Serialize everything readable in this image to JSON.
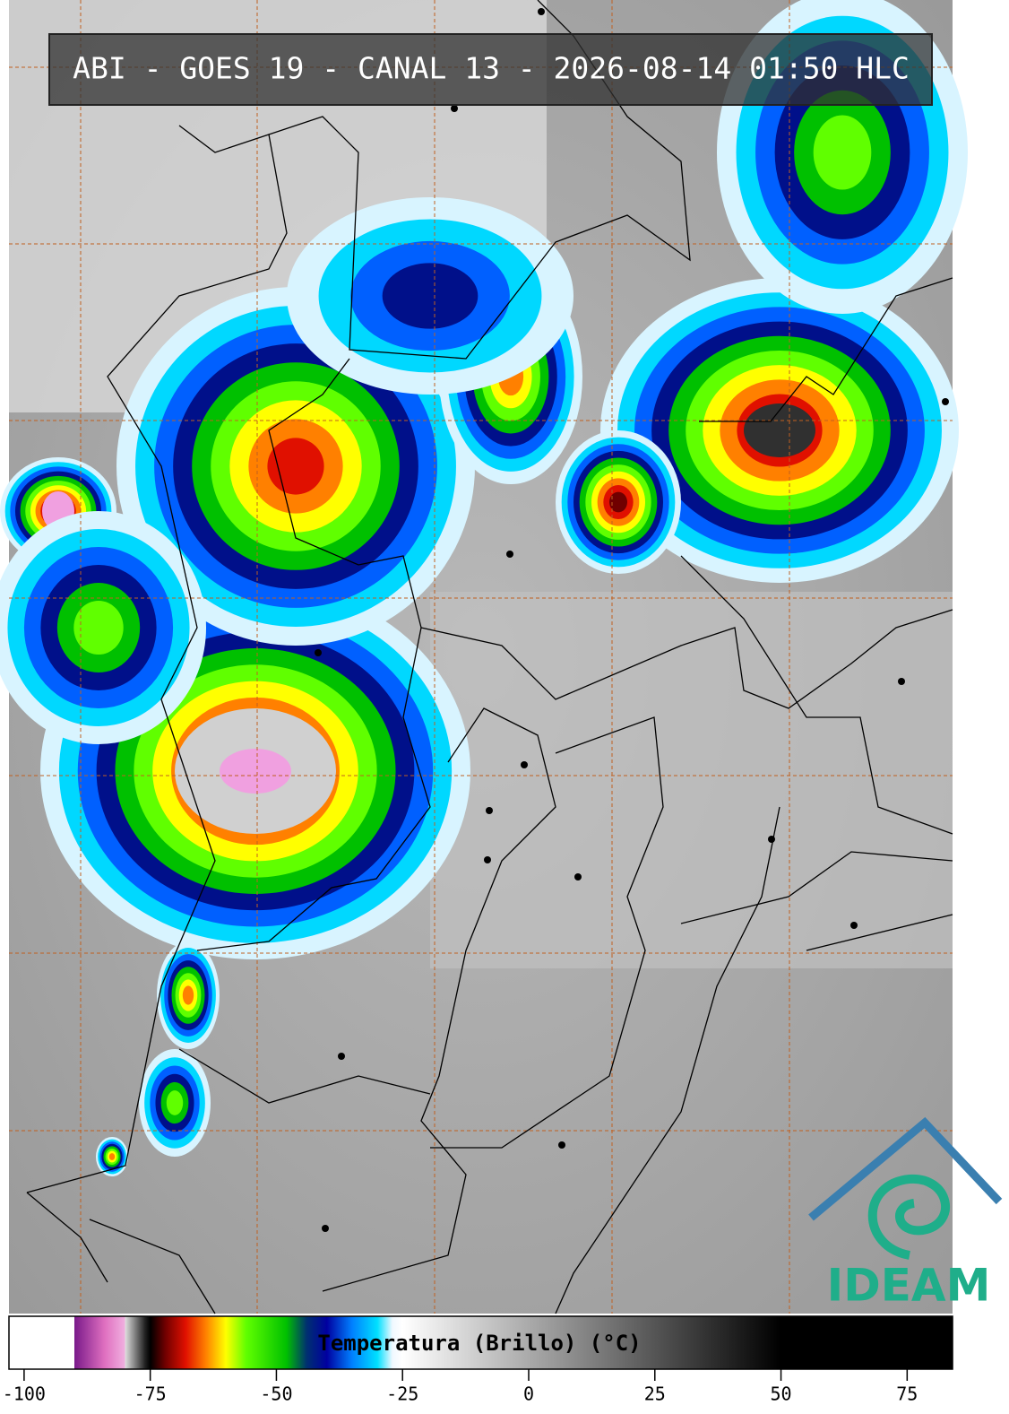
{
  "title": "ABI - GOES 19 - CANAL 13 - 2026-08-14 01:50 HLC",
  "logo": "IDEAM",
  "colorbar": {
    "label": "Temperatura (Brillo) (°C)",
    "xlim": [
      -103,
      84
    ],
    "xticks": [
      -100,
      -75,
      -50,
      -25,
      0,
      25,
      50,
      75
    ],
    "stops": [
      [
        -103,
        "#ffffff"
      ],
      [
        -90,
        "#ffffff"
      ],
      [
        -90,
        "#7a1a8a"
      ],
      [
        -84,
        "#e070c0"
      ],
      [
        -80,
        "#f0b0e0"
      ],
      [
        -80,
        "#e0e0e0"
      ],
      [
        -76,
        "#202020"
      ],
      [
        -75,
        "#000000"
      ],
      [
        -72,
        "#700000"
      ],
      [
        -68,
        "#e01000"
      ],
      [
        -64,
        "#ff8000"
      ],
      [
        -60,
        "#ffff00"
      ],
      [
        -56,
        "#60ff00"
      ],
      [
        -48,
        "#00c000"
      ],
      [
        -44,
        "#003070"
      ],
      [
        -40,
        "#0000a0"
      ],
      [
        -35,
        "#0080ff"
      ],
      [
        -30,
        "#00e0ff"
      ],
      [
        -27,
        "#f0f8ff"
      ],
      [
        -25,
        "#ffffff"
      ],
      [
        50,
        "#000000"
      ],
      [
        84,
        "#000000"
      ]
    ]
  }
}
